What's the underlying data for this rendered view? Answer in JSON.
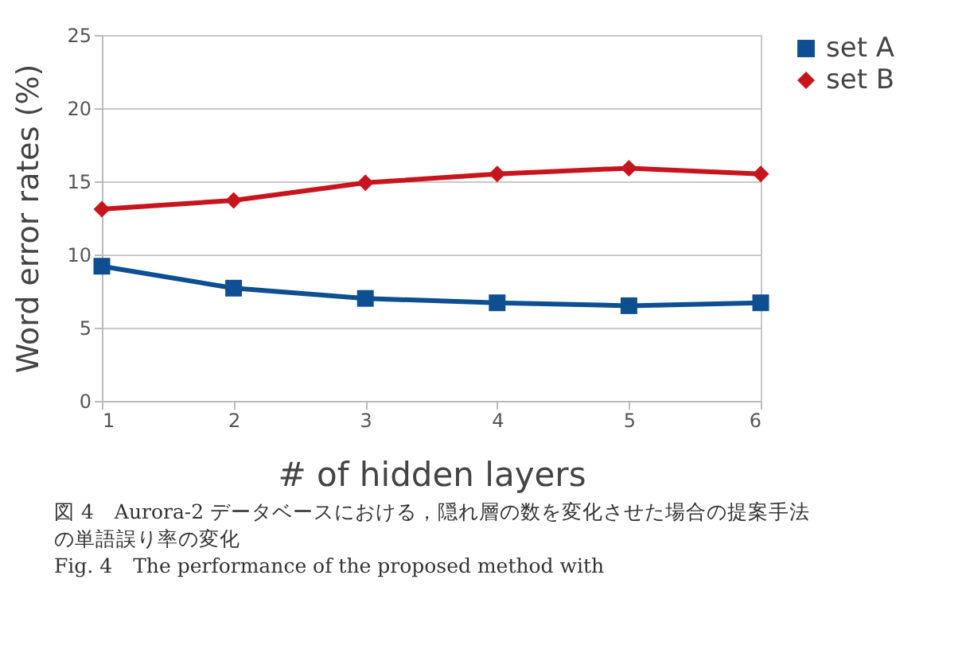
{
  "chart_data": {
    "type": "line",
    "xlabel": "# of hidden layers",
    "ylabel": "Word error rates (%)",
    "x": [
      1,
      2,
      3,
      4,
      5,
      6
    ],
    "xlim": [
      1,
      6
    ],
    "xticks": [
      1,
      2,
      3,
      4,
      5,
      6
    ],
    "ylim": [
      0,
      25
    ],
    "yticks": [
      0,
      5,
      10,
      15,
      20,
      25
    ],
    "grid": "y",
    "legend": "right",
    "line_style": "solid",
    "series": [
      {
        "name": "set A",
        "color": "#0d4f91",
        "marker": "square",
        "values": [
          9.2,
          7.7,
          7.0,
          6.7,
          6.5,
          6.7
        ]
      },
      {
        "name": "set B",
        "color": "#c8151d",
        "marker": "diamond",
        "values": [
          13.1,
          13.7,
          14.9,
          15.5,
          15.9,
          15.5
        ]
      }
    ],
    "annotations": [
      "図 4　Aurora-2 データベースにおける，隠れ層の数を変化させた場合の提案手法の単語誤り率の変化",
      "Fig. 4　The performance of the proposed method with"
    ]
  }
}
